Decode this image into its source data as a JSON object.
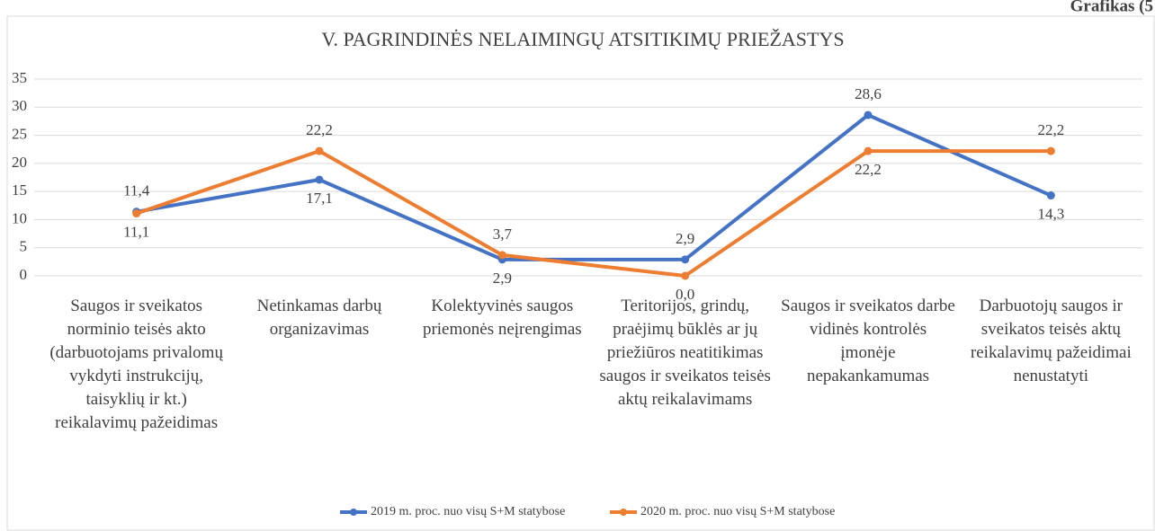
{
  "page_label": "Grafikas (5",
  "chart_data": {
    "type": "line",
    "title": "V. PAGRINDINĖS NELAIMINGŲ ATSITIKIMŲ  PRIEŽASTYS",
    "categories": [
      "Saugos ir sveikatos norminio teisės akto (darbuotojams privalomų vykdyti instrukcijų, taisyklių ir kt.) reikalavimų pažeidimas",
      "Netinkamas darbų organizavimas",
      "Kolektyvinės saugos priemonės neįrengimas",
      "Teritorijos, grindų, praėjimų būklės ar jų priežiūros neatitikimas saugos ir sveikatos teisės aktų reikalavimams",
      "Saugos ir sveikatos darbe vidinės kontrolės įmonėje nepakankamumas",
      "Darbuotojų saugos ir sveikatos teisės aktų reikalavimų pažeidimai nenustatyti"
    ],
    "series": [
      {
        "name": "2019 m. proc. nuo visų S+M statybose",
        "color": "#4472c4",
        "values": [
          11.4,
          17.1,
          2.9,
          2.9,
          28.6,
          14.3
        ],
        "value_labels": [
          "11,4",
          "17,1",
          "2,9",
          "2,9",
          "28,6",
          "14,3"
        ]
      },
      {
        "name": "2020 m. proc. nuo visų S+M statybose",
        "color": "#ed7d31",
        "values": [
          11.1,
          22.2,
          3.7,
          0.0,
          22.2,
          22.2
        ],
        "value_labels": [
          "11,1",
          "22,2",
          "3,7",
          "0,0",
          "22,2",
          "22,2"
        ]
      }
    ],
    "ylim": [
      0,
      35
    ],
    "yticks": [
      0,
      5,
      10,
      15,
      20,
      25,
      30,
      35
    ],
    "grid": true,
    "legend": "bottom"
  }
}
